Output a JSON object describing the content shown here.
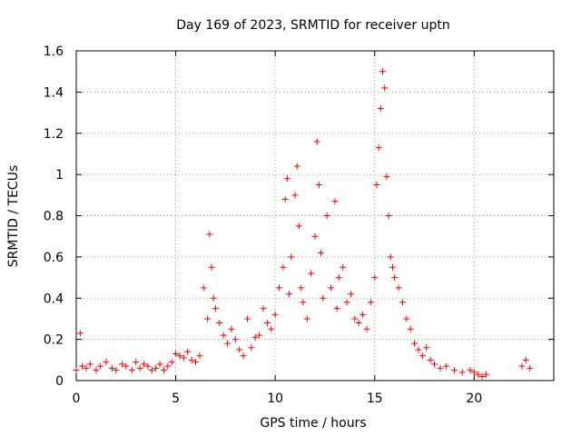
{
  "chart_data": {
    "type": "scatter",
    "title": "Day 169 of 2023, SRMTID for receiver uptn",
    "xlabel": "GPS time / hours",
    "ylabel": "SRMTID / TECUs",
    "xlim": [
      0,
      24
    ],
    "ylim": [
      0,
      1.6
    ],
    "xticks": [
      0,
      5,
      10,
      15,
      20
    ],
    "xtick_labels": [
      "0",
      "5",
      "10",
      "15",
      "20"
    ],
    "yticks": [
      0,
      0.2,
      0.4,
      0.6,
      0.8,
      1,
      1.2,
      1.4,
      1.6
    ],
    "ytick_labels": [
      "0",
      "0.2",
      "0.4",
      "0.6",
      "0.8",
      "1",
      "1.2",
      "1.4",
      "1.6"
    ],
    "grid": true,
    "marker": "plus",
    "color": "#ff0000",
    "series": [
      {
        "name": "SRMTID",
        "x": [
          0.0,
          0.2,
          0.3,
          0.5,
          0.7,
          1.0,
          1.2,
          1.5,
          1.8,
          2.0,
          2.3,
          2.5,
          2.8,
          3.0,
          3.2,
          3.4,
          3.6,
          3.8,
          4.0,
          4.2,
          4.4,
          4.6,
          4.8,
          5.0,
          5.2,
          5.4,
          5.6,
          5.8,
          6.0,
          6.2,
          6.4,
          6.6,
          6.7,
          6.8,
          6.9,
          7.0,
          7.2,
          7.4,
          7.6,
          7.8,
          8.0,
          8.2,
          8.4,
          8.6,
          8.8,
          9.0,
          9.2,
          9.4,
          9.6,
          9.8,
          10.0,
          10.2,
          10.4,
          10.5,
          10.6,
          10.7,
          10.8,
          11.0,
          11.1,
          11.2,
          11.3,
          11.4,
          11.6,
          11.8,
          12.0,
          12.1,
          12.2,
          12.3,
          12.4,
          12.6,
          12.8,
          13.0,
          13.1,
          13.2,
          13.4,
          13.6,
          13.8,
          14.0,
          14.2,
          14.4,
          14.6,
          14.8,
          15.0,
          15.1,
          15.2,
          15.3,
          15.4,
          15.5,
          15.6,
          15.7,
          15.8,
          15.9,
          16.0,
          16.2,
          16.4,
          16.6,
          16.8,
          17.0,
          17.2,
          17.4,
          17.6,
          17.8,
          18.0,
          18.3,
          18.6,
          19.0,
          19.4,
          19.8,
          20.0,
          20.2,
          20.4,
          20.6,
          22.4,
          22.6,
          22.8
        ],
        "y": [
          0.05,
          0.23,
          0.07,
          0.06,
          0.08,
          0.05,
          0.07,
          0.09,
          0.06,
          0.05,
          0.08,
          0.07,
          0.05,
          0.09,
          0.06,
          0.08,
          0.07,
          0.05,
          0.06,
          0.08,
          0.05,
          0.07,
          0.09,
          0.13,
          0.12,
          0.11,
          0.14,
          0.1,
          0.09,
          0.12,
          0.45,
          0.3,
          0.71,
          0.55,
          0.4,
          0.35,
          0.28,
          0.22,
          0.18,
          0.25,
          0.2,
          0.15,
          0.12,
          0.3,
          0.16,
          0.21,
          0.22,
          0.35,
          0.28,
          0.25,
          0.32,
          0.45,
          0.55,
          0.88,
          0.98,
          0.42,
          0.6,
          0.9,
          1.04,
          0.75,
          0.45,
          0.38,
          0.3,
          0.52,
          0.7,
          1.16,
          0.95,
          0.62,
          0.4,
          0.8,
          0.45,
          0.87,
          0.35,
          0.5,
          0.55,
          0.38,
          0.42,
          0.3,
          0.28,
          0.32,
          0.25,
          0.38,
          0.5,
          0.95,
          1.13,
          1.32,
          1.5,
          1.42,
          0.99,
          0.8,
          0.6,
          0.55,
          0.5,
          0.45,
          0.38,
          0.3,
          0.25,
          0.18,
          0.15,
          0.12,
          0.16,
          0.1,
          0.08,
          0.06,
          0.07,
          0.05,
          0.04,
          0.05,
          0.04,
          0.03,
          0.02,
          0.03,
          0.07,
          0.1,
          0.06
        ]
      }
    ]
  }
}
